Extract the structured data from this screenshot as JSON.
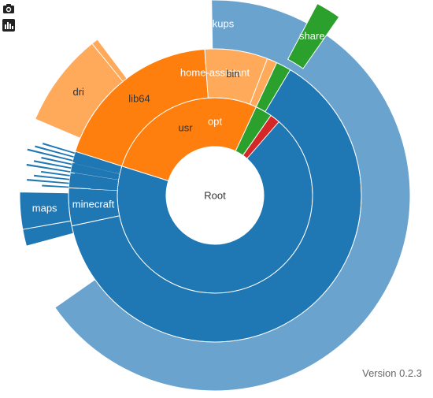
{
  "toolbar": {
    "camera_icon": "camera-icon",
    "stats_icon": "bar-chart-icon"
  },
  "version_text": "Version 0.2.3",
  "colors": {
    "blue_dark": "#1f77b4",
    "blue_light": "#6aa3cd",
    "orange_dark": "#ff7f0e",
    "orange_light": "#ffa95a",
    "green": "#2ca02c",
    "red": "#d62728",
    "center": "#ffffff"
  },
  "chart_data": {
    "type": "sunburst",
    "title": "",
    "center_label": "Root",
    "nodes": [
      {
        "name": "opt",
        "depth": 1,
        "start_deg": -91.0,
        "end_deg": 197.5,
        "color": "#1f77b4",
        "label": "opt"
      },
      {
        "name": "usr",
        "depth": 1,
        "start_deg": 197.5,
        "end_deg": 295.0,
        "color": "#ff7f0e",
        "label": "usr"
      },
      {
        "name": "green-dir",
        "depth": 1,
        "start_deg": 295.0,
        "end_deg": 305.0,
        "color": "#2ca02c",
        "label": ""
      },
      {
        "name": "red-dir",
        "depth": 1,
        "start_deg": 305.0,
        "end_deg": 311.0,
        "color": "#d62728",
        "label": ""
      },
      {
        "name": "home-assistant",
        "depth": 2,
        "start_deg": -91.0,
        "end_deg": 168.0,
        "color": "#1f77b4",
        "label": "home-assistant"
      },
      {
        "name": "minecraft",
        "depth": 2,
        "start_deg": 168.0,
        "end_deg": 183.0,
        "color": "#1f77b4",
        "label": "minecraft"
      },
      {
        "name": "opt-small-1",
        "depth": 2,
        "start_deg": 183.0,
        "end_deg": 189.0,
        "color": "#1f77b4",
        "label": ""
      },
      {
        "name": "opt-small-2",
        "depth": 2,
        "start_deg": 189.0,
        "end_deg": 193.0,
        "color": "#1f77b4",
        "label": ""
      },
      {
        "name": "opt-small-3",
        "depth": 2,
        "start_deg": 193.0,
        "end_deg": 197.5,
        "color": "#1f77b4",
        "label": ""
      },
      {
        "name": "lib64",
        "depth": 2,
        "start_deg": 197.5,
        "end_deg": 266.0,
        "color": "#ff7f0e",
        "label": "lib64"
      },
      {
        "name": "bin",
        "depth": 2,
        "start_deg": 266.0,
        "end_deg": 291.0,
        "color": "#ffa95a",
        "label": "bin"
      },
      {
        "name": "usr-small",
        "depth": 2,
        "start_deg": 291.0,
        "end_deg": 295.0,
        "color": "#ffa95a",
        "label": ""
      },
      {
        "name": "green-child",
        "depth": 2,
        "start_deg": 295.0,
        "end_deg": 301.0,
        "color": "#2ca02c",
        "label": ""
      },
      {
        "name": "backups",
        "depth": 3,
        "start_deg": -91.0,
        "end_deg": 145.0,
        "color": "#6aa3cd",
        "label": "backups"
      },
      {
        "name": "minecraft-child",
        "depth": 3,
        "start_deg": 165.0,
        "end_deg": 170.0,
        "color": "#1f77b4",
        "label": ""
      },
      {
        "name": "maps",
        "depth": 3,
        "start_deg": 170.0,
        "end_deg": 181.0,
        "color": "#1f77b4",
        "label": "maps"
      },
      {
        "name": "dri",
        "depth": 3,
        "start_deg": 203.0,
        "end_deg": 231.0,
        "color": "#ffa95a",
        "label": "dri"
      },
      {
        "name": "lib64-small",
        "depth": 3,
        "start_deg": 231.0,
        "end_deg": 233.0,
        "color": "#ffa95a",
        "label": ""
      },
      {
        "name": "share",
        "depth": 3,
        "start_deg": 298.0,
        "end_deg": 305.0,
        "color": "#2ca02c",
        "label": "share"
      }
    ],
    "rings": [
      {
        "depth": 0,
        "inner": 0,
        "outer": 62
      },
      {
        "depth": 1,
        "inner": 62,
        "outer": 124
      },
      {
        "depth": 2,
        "inner": 124,
        "outer": 186
      },
      {
        "depth": 3,
        "inner": 186,
        "outer": 248
      }
    ],
    "slivers": [
      {
        "depth": 2,
        "from_deg": 183.0,
        "to_deg": 197.0,
        "count": 10,
        "color": "#1f77b4"
      },
      {
        "depth": 3,
        "from_deg": 183.0,
        "to_deg": 198.0,
        "count": 10,
        "color": "#1f77b4"
      },
      {
        "depth": 3,
        "from_deg": 229.0,
        "to_deg": 233.0,
        "count": 5,
        "color": "#ffa95a"
      }
    ],
    "highlighted": "share"
  }
}
